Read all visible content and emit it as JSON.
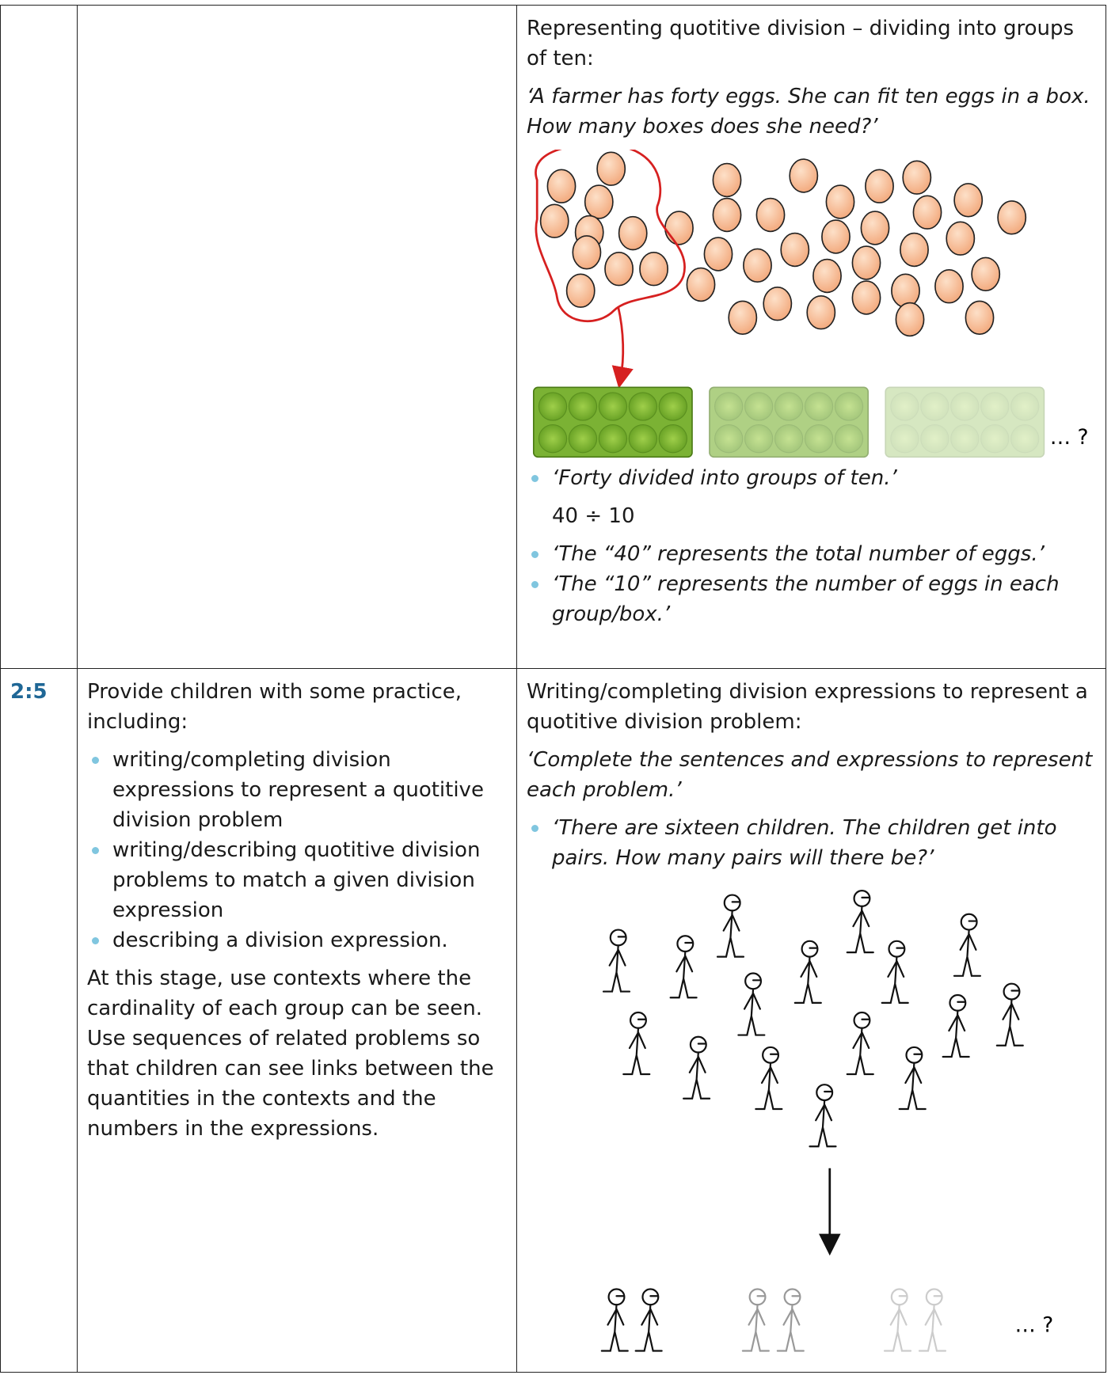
{
  "table": {
    "rows": [
      {
        "example": {
          "heading": "Representing quotitive division – dividing into groups of ten:",
          "prompt": "‘A farmer has forty eggs. She can fit ten eggs in a box. How many boxes does she need?’",
          "continuation": "… ?",
          "bullets": [
            "‘Forty divided into groups of ten.’"
          ],
          "expression": "40 ÷ 10",
          "more_bullets": [
            "‘The “40” represents the total number of eggs.’",
            "‘The “10” represents the number of eggs in each group/box.’"
          ]
        }
      },
      {
        "step": "2:5",
        "guidance": {
          "intro": "Provide children with some practice, including:",
          "bullets": [
            "writing/completing division expressions to represent a quotitive division problem",
            "writing/describing quotitive division problems to match a given division expression",
            "describing a division expression."
          ],
          "paragraph": "At this stage, use contexts where the cardinality of each group can be seen. Use sequences of related problems so that children can see links between the quantities in the contexts and the numbers in the expressions."
        },
        "example": {
          "heading": "Writing/completing division expressions to represent a quotitive division problem:",
          "prompt": "‘Complete the sentences and expressions to represent each problem.’",
          "bullets": [
            "‘There are sixteen children. The children get into pairs. How many pairs will there be?’"
          ],
          "continuation": "… ?"
        }
      }
    ]
  }
}
